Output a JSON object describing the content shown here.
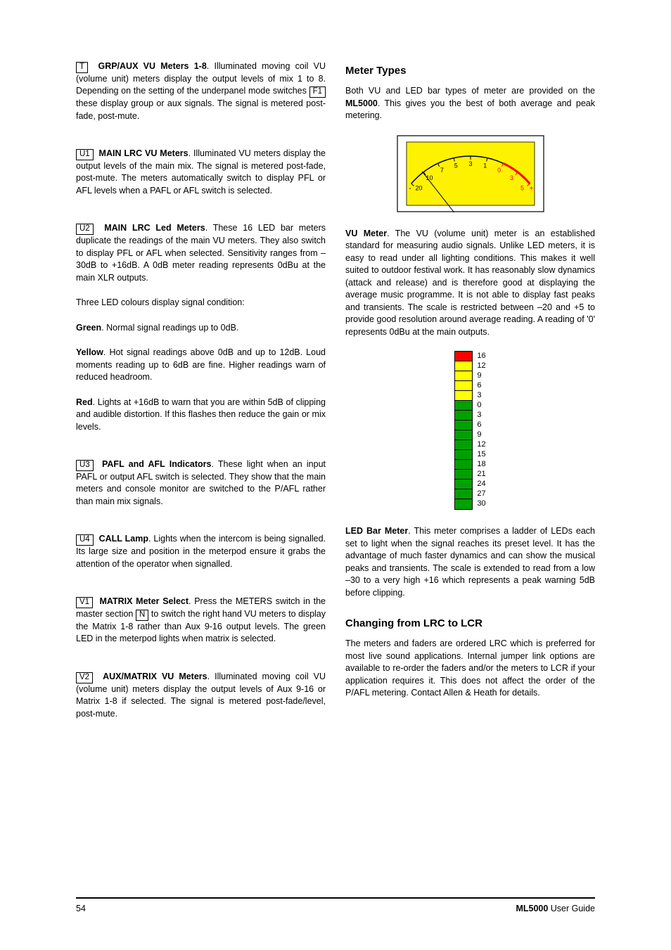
{
  "left": {
    "t": {
      "code": "T",
      "text_a": ". Illuminated moving coil VU (volume unit) meters display the output levels of mix 1 to 8. Depending on the setting of the underpanel mode switches ",
      "inline_code": "F1",
      "text_b": " these display group or aux signals. The signal is metered post-fade, post-mute.",
      "title": "GRP/AUX VU Meters 1-8"
    },
    "u1": {
      "code": "U1",
      "title": "MAIN LRC VU Meters",
      "text": ". Illuminated VU meters display the output levels of the main mix. The signal is metered post-fade, post-mute. The meters automatically switch to display PFL or AFL levels when a PAFL or AFL switch is selected."
    },
    "u2": {
      "code": "U2",
      "title": "MAIN LRC Led Meters",
      "text": ". These 16 LED bar meters duplicate the readings of the main VU meters. They also switch to display PFL or AFL when selected. Sensitivity ranges from –30dB to +16dB. A 0dB meter reading represents 0dBu at the main XLR outputs.",
      "cond_intro": "Three LED colours display signal condition:",
      "green_label": "Green",
      "green_text": ". Normal signal readings up to 0dB.",
      "yellow_label": "Yellow",
      "yellow_text": ". Hot signal readings above 0dB and up to 12dB. Loud moments reading up to 6dB are fine. Higher readings warn of reduced headroom.",
      "red_label": "Red",
      "red_text": ". Lights at +16dB to warn that you are within 5dB of clipping and audible distortion. If this flashes then reduce the gain or mix levels."
    },
    "u3": {
      "code": "U3",
      "title": "PAFL and AFL Indicators",
      "text": ". These light when an input PAFL or output AFL switch is selected. They show that the main meters and console monitor are switched to the P/AFL rather than main mix signals."
    },
    "u4": {
      "code": "U4",
      "title": "CALL Lamp",
      "text": ". Lights when the intercom is being signalled. Its large size and position in the meterpod ensure it grabs the attention of the operator when signalled."
    },
    "v1": {
      "code": "V1",
      "title": "MATRIX Meter Select",
      "text_a": ". Press the METERS switch in the master section ",
      "inline_code": "N",
      "text_b": " to switch the right hand VU meters to display the Matrix 1-8 rather than Aux 9-16 output levels. The green LED in the meterpod lights when matrix is selected."
    },
    "v2": {
      "code": "V2",
      "title": "AUX/MATRIX VU Meters",
      "text": ". Illuminated moving coil VU (volume unit) meters display the output levels of Aux 9-16 or Matrix 1-8 if selected. The signal is metered post-fade/level, post-mute."
    }
  },
  "right": {
    "h_meter_types": "Meter Types",
    "intro_a": "Both VU and LED bar types of meter are provided on the ",
    "intro_bold": "ML5000",
    "intro_b": ". This gives you the best of both average and peak metering.",
    "vu_graphic": {
      "bg": "#fff200",
      "border": "#000000",
      "scale_color": "#000000",
      "red_zone_color": "#ff0000",
      "ticks": [
        "20",
        "10",
        "7",
        "5",
        "3",
        "1",
        "0",
        "3",
        "5"
      ],
      "minus": "-",
      "plus": "+"
    },
    "vu_label": "VU Meter",
    "vu_text": ". The VU (volume unit) meter is an established standard for measuring audio signals. Unlike LED meters, it is easy to read under all lighting conditions. This makes it well suited to outdoor festival work. It has reasonably slow dynamics (attack and release) and is therefore good at displaying the average music programme. It is not able to display fast peaks and transients. The scale is restricted between –20 and +5 to provide good resolution around average reading. A reading of '0' represents 0dBu at the main outputs.",
    "led_graphic": {
      "segments": [
        {
          "color": "#ff0000",
          "label": "16"
        },
        {
          "color": "#ffff00",
          "label": "12"
        },
        {
          "color": "#ffff00",
          "label": "9"
        },
        {
          "color": "#ffff00",
          "label": "6"
        },
        {
          "color": "#ffff00",
          "label": "3"
        },
        {
          "color": "#00a000",
          "label": "0"
        },
        {
          "color": "#00a000",
          "label": "3"
        },
        {
          "color": "#00a000",
          "label": "6"
        },
        {
          "color": "#00a000",
          "label": "9"
        },
        {
          "color": "#00a000",
          "label": "12"
        },
        {
          "color": "#00a000",
          "label": "15"
        },
        {
          "color": "#00a000",
          "label": "18"
        },
        {
          "color": "#00a000",
          "label": "21"
        },
        {
          "color": "#00a000",
          "label": "24"
        },
        {
          "color": "#00a000",
          "label": "27"
        },
        {
          "color": "#00a000",
          "label": "30"
        }
      ]
    },
    "led_label": "LED Bar Meter",
    "led_text": ". This meter comprises a ladder of LEDs each set to light when the signal reaches its preset level. It has the advantage of much faster dynamics and can show the musical peaks and transients. The scale is extended to read from a low –30 to a very high +16 which represents a peak warning 5dB before clipping.",
    "h_changing": "Changing from LRC to LCR",
    "changing_text": "The meters and faders are ordered LRC which is preferred for most live sound applications. Internal jumper link options are available to re-order the faders and/or the meters to LCR if your application requires it. This does not affect the order of the P/AFL metering. Contact Allen & Heath for details."
  },
  "footer": {
    "page": "54",
    "product": "ML5000",
    "guide": " User Guide"
  }
}
